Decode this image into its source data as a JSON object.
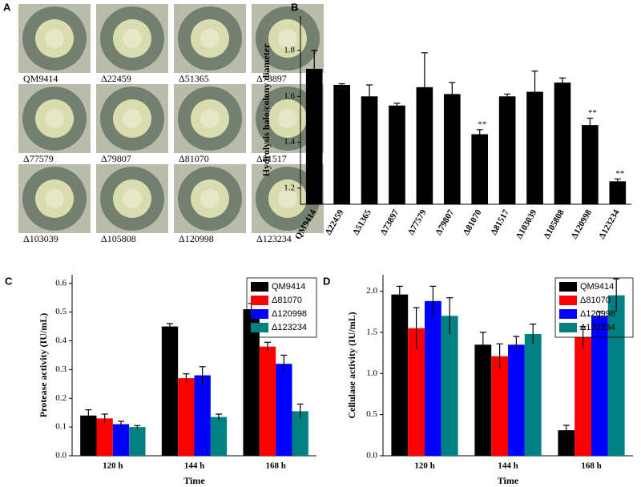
{
  "plates": {
    "panel": "A",
    "labels": [
      "QM9414",
      "Δ22459",
      "Δ51365",
      "Δ73897",
      "Δ77579",
      "Δ79807",
      "Δ81070",
      "Δ81517",
      "Δ103039",
      "Δ105808",
      "Δ120998",
      "Δ123234"
    ]
  },
  "chart_data": [
    {
      "type": "bar",
      "panel": "B",
      "ylabel": "Hydrolysis halo/colony diameter",
      "categories": [
        "QM9414",
        "Δ22459",
        "Δ51365",
        "Δ73897",
        "Δ77579",
        "Δ79807",
        "Δ81070",
        "Δ81517",
        "Δ103039",
        "Δ105808",
        "Δ120998",
        "Δ123234"
      ],
      "values": [
        1.72,
        1.65,
        1.6,
        1.56,
        1.64,
        1.61,
        1.435,
        1.6,
        1.62,
        1.66,
        1.475,
        1.23
      ],
      "errors": [
        0.08,
        0.005,
        0.05,
        0.01,
        0.15,
        0.05,
        0.02,
        0.01,
        0.09,
        0.02,
        0.03,
        0.01
      ],
      "significance": [
        null,
        null,
        null,
        null,
        null,
        null,
        "**",
        null,
        null,
        null,
        "**",
        "**"
      ],
      "color": "#000000",
      "ylim": [
        1.13,
        1.95
      ],
      "yticks": [
        1.2,
        1.4,
        1.6,
        1.8
      ]
    },
    {
      "type": "bar",
      "panel": "C",
      "ylabel": "Protease activity (IU/mL)",
      "xlabel": "Time",
      "categories": [
        "120 h",
        "144 h",
        "168 h"
      ],
      "series": [
        {
          "name": "QM9414",
          "color": "#000000",
          "values": [
            0.14,
            0.45,
            0.51
          ],
          "errors": [
            0.02,
            0.01,
            0.02
          ]
        },
        {
          "name": "Δ81070",
          "color": "#ff0000",
          "values": [
            0.13,
            0.27,
            0.38
          ],
          "errors": [
            0.015,
            0.015,
            0.015
          ]
        },
        {
          "name": "Δ120998",
          "color": "#0000ff",
          "values": [
            0.11,
            0.28,
            0.32
          ],
          "errors": [
            0.01,
            0.03,
            0.03
          ]
        },
        {
          "name": "Δ123234",
          "color": "#008080",
          "values": [
            0.1,
            0.135,
            0.155
          ],
          "errors": [
            0.005,
            0.01,
            0.025
          ]
        }
      ],
      "ylim": [
        0,
        0.63
      ],
      "yticks": [
        {
          "value": 0,
          "label": "0.0"
        },
        0.1,
        0.2,
        0.3,
        0.4,
        0.5,
        0.6
      ],
      "legend": "upper right"
    },
    {
      "type": "bar",
      "panel": "D",
      "ylabel": "Cellulase activity (IU/mL)",
      "xlabel": "Time",
      "categories": [
        "120 h",
        "144 h",
        "168 h"
      ],
      "series": [
        {
          "name": "QM9414",
          "color": "#000000",
          "values": [
            1.96,
            1.35,
            0.31
          ],
          "errors": [
            0.1,
            0.15,
            0.06
          ]
        },
        {
          "name": "Δ81070",
          "color": "#ff0000",
          "values": [
            1.55,
            1.21,
            1.44
          ],
          "errors": [
            0.25,
            0.15,
            0.13
          ]
        },
        {
          "name": "Δ120998",
          "color": "#0000ff",
          "values": [
            1.88,
            1.35,
            1.7
          ],
          "errors": [
            0.18,
            0.1,
            0.05
          ]
        },
        {
          "name": "Δ123234",
          "color": "#008080",
          "values": [
            1.7,
            1.48,
            1.95
          ],
          "errors": [
            0.22,
            0.12,
            0.2
          ]
        }
      ],
      "ylim": [
        0,
        2.2
      ],
      "yticks": [
        {
          "value": 0,
          "label": "0.0"
        },
        0.5,
        {
          "value": 1,
          "label": "1.0"
        },
        1.5,
        {
          "value": 2,
          "label": "2.0"
        }
      ],
      "legend": "upper right"
    }
  ]
}
